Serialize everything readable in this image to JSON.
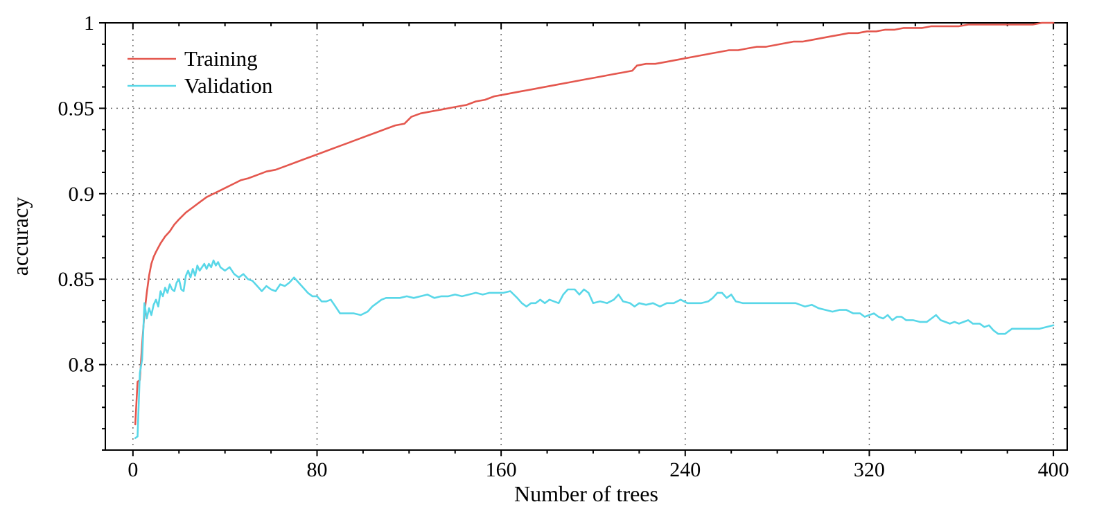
{
  "chart_data": {
    "type": "line",
    "title": "",
    "xlabel": "Number of trees",
    "ylabel": "accuracy",
    "xlim": [
      -12,
      406
    ],
    "ylim": [
      0.75,
      1.0
    ],
    "x_ticks": [
      0,
      80,
      160,
      240,
      320,
      400
    ],
    "x_tick_labels": [
      "0",
      "80",
      "160",
      "240",
      "320",
      "400"
    ],
    "y_ticks": [
      0.8,
      0.85,
      0.9,
      0.95,
      1
    ],
    "y_tick_labels": [
      "0.8",
      "0.85",
      "0.9",
      "0.95",
      "1"
    ],
    "x_minor_step": 20,
    "y_minor_step": 0.0125,
    "grid": true,
    "legend_position": "top-left",
    "series": [
      {
        "name": "Training",
        "color": "#e4574e",
        "points": [
          [
            1,
            0.765
          ],
          [
            2,
            0.79
          ],
          [
            3,
            0.791
          ],
          [
            4,
            0.812
          ],
          [
            5,
            0.83
          ],
          [
            6,
            0.842
          ],
          [
            7,
            0.852
          ],
          [
            8,
            0.859
          ],
          [
            9,
            0.863
          ],
          [
            10,
            0.866
          ],
          [
            12,
            0.871
          ],
          [
            14,
            0.875
          ],
          [
            16,
            0.878
          ],
          [
            18,
            0.882
          ],
          [
            20,
            0.885
          ],
          [
            23,
            0.889
          ],
          [
            26,
            0.892
          ],
          [
            29,
            0.895
          ],
          [
            32,
            0.898
          ],
          [
            35,
            0.9
          ],
          [
            38,
            0.902
          ],
          [
            41,
            0.904
          ],
          [
            44,
            0.906
          ],
          [
            47,
            0.908
          ],
          [
            50,
            0.909
          ],
          [
            54,
            0.911
          ],
          [
            58,
            0.913
          ],
          [
            62,
            0.914
          ],
          [
            66,
            0.916
          ],
          [
            70,
            0.918
          ],
          [
            74,
            0.92
          ],
          [
            78,
            0.922
          ],
          [
            82,
            0.924
          ],
          [
            86,
            0.926
          ],
          [
            90,
            0.928
          ],
          [
            94,
            0.93
          ],
          [
            98,
            0.932
          ],
          [
            102,
            0.934
          ],
          [
            106,
            0.936
          ],
          [
            110,
            0.938
          ],
          [
            114,
            0.94
          ],
          [
            118,
            0.941
          ],
          [
            121,
            0.945
          ],
          [
            125,
            0.947
          ],
          [
            129,
            0.948
          ],
          [
            133,
            0.949
          ],
          [
            137,
            0.95
          ],
          [
            141,
            0.951
          ],
          [
            145,
            0.952
          ],
          [
            149,
            0.954
          ],
          [
            153,
            0.955
          ],
          [
            157,
            0.957
          ],
          [
            161,
            0.958
          ],
          [
            165,
            0.959
          ],
          [
            169,
            0.96
          ],
          [
            173,
            0.961
          ],
          [
            177,
            0.962
          ],
          [
            181,
            0.963
          ],
          [
            185,
            0.964
          ],
          [
            189,
            0.965
          ],
          [
            193,
            0.966
          ],
          [
            197,
            0.967
          ],
          [
            201,
            0.968
          ],
          [
            205,
            0.969
          ],
          [
            209,
            0.97
          ],
          [
            213,
            0.971
          ],
          [
            217,
            0.972
          ],
          [
            219,
            0.975
          ],
          [
            223,
            0.976
          ],
          [
            227,
            0.976
          ],
          [
            231,
            0.977
          ],
          [
            235,
            0.978
          ],
          [
            239,
            0.979
          ],
          [
            243,
            0.98
          ],
          [
            247,
            0.981
          ],
          [
            251,
            0.982
          ],
          [
            255,
            0.983
          ],
          [
            259,
            0.984
          ],
          [
            263,
            0.984
          ],
          [
            267,
            0.985
          ],
          [
            271,
            0.986
          ],
          [
            275,
            0.986
          ],
          [
            279,
            0.987
          ],
          [
            283,
            0.988
          ],
          [
            287,
            0.989
          ],
          [
            291,
            0.989
          ],
          [
            295,
            0.99
          ],
          [
            299,
            0.991
          ],
          [
            303,
            0.992
          ],
          [
            307,
            0.993
          ],
          [
            311,
            0.994
          ],
          [
            315,
            0.994
          ],
          [
            319,
            0.995
          ],
          [
            323,
            0.995
          ],
          [
            327,
            0.996
          ],
          [
            331,
            0.996
          ],
          [
            335,
            0.997
          ],
          [
            339,
            0.997
          ],
          [
            343,
            0.997
          ],
          [
            347,
            0.998
          ],
          [
            351,
            0.998
          ],
          [
            355,
            0.998
          ],
          [
            359,
            0.998
          ],
          [
            363,
            0.999
          ],
          [
            367,
            0.999
          ],
          [
            371,
            0.999
          ],
          [
            375,
            0.999
          ],
          [
            379,
            0.999
          ],
          [
            383,
            0.999
          ],
          [
            387,
            0.999
          ],
          [
            391,
            0.999
          ],
          [
            395,
            1.0
          ],
          [
            400,
            1.0
          ]
        ]
      },
      {
        "name": "Validation",
        "color": "#59d7e8",
        "points": [
          [
            1,
            0.757
          ],
          [
            2,
            0.758
          ],
          [
            3,
            0.795
          ],
          [
            4,
            0.803
          ],
          [
            5,
            0.836
          ],
          [
            6,
            0.827
          ],
          [
            7,
            0.833
          ],
          [
            8,
            0.829
          ],
          [
            9,
            0.835
          ],
          [
            10,
            0.838
          ],
          [
            11,
            0.834
          ],
          [
            12,
            0.843
          ],
          [
            13,
            0.84
          ],
          [
            14,
            0.845
          ],
          [
            15,
            0.842
          ],
          [
            16,
            0.847
          ],
          [
            17,
            0.844
          ],
          [
            18,
            0.843
          ],
          [
            19,
            0.848
          ],
          [
            20,
            0.85
          ],
          [
            21,
            0.844
          ],
          [
            22,
            0.843
          ],
          [
            23,
            0.852
          ],
          [
            24,
            0.855
          ],
          [
            25,
            0.851
          ],
          [
            26,
            0.856
          ],
          [
            27,
            0.852
          ],
          [
            28,
            0.858
          ],
          [
            29,
            0.855
          ],
          [
            30,
            0.857
          ],
          [
            31,
            0.859
          ],
          [
            32,
            0.856
          ],
          [
            33,
            0.859
          ],
          [
            34,
            0.857
          ],
          [
            35,
            0.861
          ],
          [
            36,
            0.858
          ],
          [
            37,
            0.86
          ],
          [
            38,
            0.857
          ],
          [
            40,
            0.855
          ],
          [
            42,
            0.857
          ],
          [
            44,
            0.853
          ],
          [
            46,
            0.851
          ],
          [
            48,
            0.853
          ],
          [
            50,
            0.85
          ],
          [
            52,
            0.849
          ],
          [
            54,
            0.846
          ],
          [
            56,
            0.843
          ],
          [
            58,
            0.846
          ],
          [
            60,
            0.844
          ],
          [
            62,
            0.843
          ],
          [
            64,
            0.847
          ],
          [
            66,
            0.846
          ],
          [
            68,
            0.848
          ],
          [
            70,
            0.851
          ],
          [
            72,
            0.848
          ],
          [
            74,
            0.845
          ],
          [
            76,
            0.842
          ],
          [
            78,
            0.84
          ],
          [
            80,
            0.84
          ],
          [
            82,
            0.837
          ],
          [
            84,
            0.837
          ],
          [
            86,
            0.838
          ],
          [
            88,
            0.834
          ],
          [
            90,
            0.83
          ],
          [
            93,
            0.83
          ],
          [
            96,
            0.83
          ],
          [
            99,
            0.829
          ],
          [
            102,
            0.831
          ],
          [
            104,
            0.834
          ],
          [
            106,
            0.836
          ],
          [
            108,
            0.838
          ],
          [
            110,
            0.839
          ],
          [
            113,
            0.839
          ],
          [
            116,
            0.839
          ],
          [
            119,
            0.84
          ],
          [
            122,
            0.839
          ],
          [
            125,
            0.84
          ],
          [
            128,
            0.841
          ],
          [
            131,
            0.839
          ],
          [
            134,
            0.84
          ],
          [
            137,
            0.84
          ],
          [
            140,
            0.841
          ],
          [
            143,
            0.84
          ],
          [
            146,
            0.841
          ],
          [
            149,
            0.842
          ],
          [
            152,
            0.841
          ],
          [
            155,
            0.842
          ],
          [
            158,
            0.842
          ],
          [
            161,
            0.842
          ],
          [
            164,
            0.843
          ],
          [
            167,
            0.839
          ],
          [
            169,
            0.836
          ],
          [
            171,
            0.834
          ],
          [
            173,
            0.836
          ],
          [
            175,
            0.836
          ],
          [
            177,
            0.838
          ],
          [
            179,
            0.836
          ],
          [
            181,
            0.838
          ],
          [
            183,
            0.837
          ],
          [
            185,
            0.836
          ],
          [
            187,
            0.841
          ],
          [
            189,
            0.844
          ],
          [
            192,
            0.844
          ],
          [
            194,
            0.841
          ],
          [
            196,
            0.844
          ],
          [
            198,
            0.842
          ],
          [
            200,
            0.836
          ],
          [
            203,
            0.837
          ],
          [
            206,
            0.836
          ],
          [
            209,
            0.838
          ],
          [
            211,
            0.841
          ],
          [
            213,
            0.837
          ],
          [
            216,
            0.836
          ],
          [
            218,
            0.834
          ],
          [
            220,
            0.836
          ],
          [
            223,
            0.835
          ],
          [
            226,
            0.836
          ],
          [
            229,
            0.834
          ],
          [
            232,
            0.836
          ],
          [
            235,
            0.836
          ],
          [
            238,
            0.838
          ],
          [
            241,
            0.836
          ],
          [
            244,
            0.836
          ],
          [
            247,
            0.836
          ],
          [
            250,
            0.837
          ],
          [
            252,
            0.839
          ],
          [
            254,
            0.842
          ],
          [
            256,
            0.842
          ],
          [
            258,
            0.839
          ],
          [
            260,
            0.841
          ],
          [
            262,
            0.837
          ],
          [
            265,
            0.836
          ],
          [
            268,
            0.836
          ],
          [
            272,
            0.836
          ],
          [
            276,
            0.836
          ],
          [
            280,
            0.836
          ],
          [
            284,
            0.836
          ],
          [
            288,
            0.836
          ],
          [
            292,
            0.834
          ],
          [
            295,
            0.835
          ],
          [
            298,
            0.833
          ],
          [
            301,
            0.832
          ],
          [
            304,
            0.831
          ],
          [
            307,
            0.832
          ],
          [
            310,
            0.832
          ],
          [
            313,
            0.83
          ],
          [
            316,
            0.83
          ],
          [
            318,
            0.828
          ],
          [
            320,
            0.829
          ],
          [
            322,
            0.83
          ],
          [
            324,
            0.828
          ],
          [
            326,
            0.827
          ],
          [
            328,
            0.829
          ],
          [
            330,
            0.826
          ],
          [
            332,
            0.828
          ],
          [
            334,
            0.828
          ],
          [
            336,
            0.826
          ],
          [
            339,
            0.826
          ],
          [
            342,
            0.825
          ],
          [
            345,
            0.825
          ],
          [
            347,
            0.827
          ],
          [
            349,
            0.829
          ],
          [
            351,
            0.826
          ],
          [
            353,
            0.825
          ],
          [
            355,
            0.824
          ],
          [
            357,
            0.825
          ],
          [
            359,
            0.824
          ],
          [
            361,
            0.825
          ],
          [
            363,
            0.826
          ],
          [
            365,
            0.824
          ],
          [
            368,
            0.824
          ],
          [
            370,
            0.822
          ],
          [
            372,
            0.823
          ],
          [
            374,
            0.82
          ],
          [
            376,
            0.818
          ],
          [
            379,
            0.818
          ],
          [
            382,
            0.821
          ],
          [
            385,
            0.821
          ],
          [
            388,
            0.821
          ],
          [
            391,
            0.821
          ],
          [
            394,
            0.821
          ],
          [
            397,
            0.822
          ],
          [
            400,
            0.823
          ]
        ]
      }
    ]
  }
}
